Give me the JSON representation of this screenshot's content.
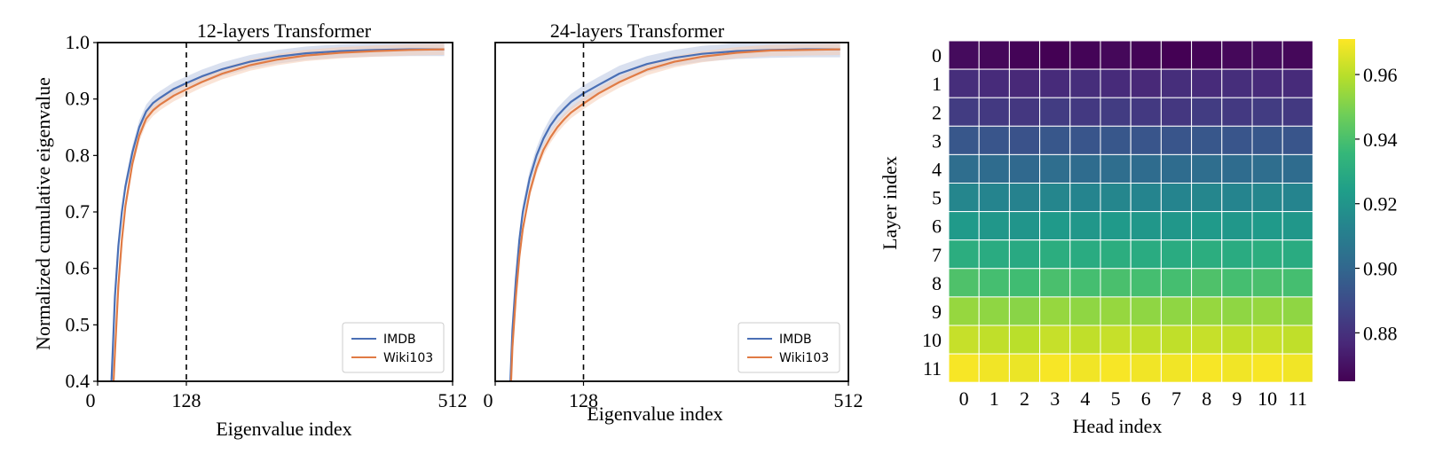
{
  "chart_data": [
    {
      "type": "line",
      "title": "12-layers Transformer",
      "xlabel": "Eigenvalue index",
      "ylabel": "Normalized cumulative eigenvalue",
      "xlim": [
        0,
        512
      ],
      "ylim": [
        0.4,
        1.0
      ],
      "xticks": [
        0,
        128,
        512
      ],
      "xtick_labels": [
        "0",
        "128",
        "512"
      ],
      "yticks": [
        0.4,
        0.5,
        0.6,
        0.7,
        0.8,
        0.9,
        1.0
      ],
      "ytick_labels": [
        "0.4",
        "0.5",
        "0.6",
        "0.7",
        "0.8",
        "0.9",
        "1.0"
      ],
      "vline": 128,
      "legend_position": "bottom-right",
      "series": [
        {
          "name": "IMDB",
          "color": "#4a6fb5",
          "band_color": "#b9c6e2",
          "x": [
            20,
            22,
            25,
            30,
            35,
            40,
            50,
            60,
            70,
            80,
            90,
            100,
            110,
            128,
            150,
            180,
            220,
            260,
            300,
            350,
            400,
            450,
            500
          ],
          "y": [
            0.4,
            0.46,
            0.55,
            0.64,
            0.7,
            0.745,
            0.805,
            0.85,
            0.878,
            0.893,
            0.902,
            0.91,
            0.918,
            0.928,
            0.94,
            0.953,
            0.966,
            0.975,
            0.981,
            0.985,
            0.987,
            0.988,
            0.988
          ],
          "band": 0.012
        },
        {
          "name": "Wiki103",
          "color": "#e07b45",
          "band_color": "#f6cdb6",
          "x": [
            23,
            25,
            30,
            35,
            40,
            50,
            60,
            70,
            80,
            90,
            100,
            110,
            128,
            150,
            180,
            220,
            260,
            300,
            350,
            400,
            450,
            500
          ],
          "y": [
            0.4,
            0.45,
            0.57,
            0.65,
            0.71,
            0.785,
            0.835,
            0.865,
            0.88,
            0.89,
            0.898,
            0.906,
            0.917,
            0.93,
            0.945,
            0.96,
            0.97,
            0.977,
            0.982,
            0.985,
            0.987,
            0.988
          ],
          "band": 0.01
        }
      ]
    },
    {
      "type": "line",
      "title": "24-layers Transformer",
      "xlabel": "Eigenvalue index",
      "ylabel": "",
      "xlim": [
        0,
        512
      ],
      "ylim": [
        0.4,
        1.0
      ],
      "xticks": [
        0,
        128,
        512
      ],
      "xtick_labels": [
        "0",
        "128",
        "512"
      ],
      "yticks": [],
      "ytick_labels": [],
      "vline": 128,
      "legend_position": "bottom-right",
      "series": [
        {
          "name": "IMDB",
          "color": "#4a6fb5",
          "band_color": "#b9c6e2",
          "x": [
            22,
            25,
            30,
            35,
            40,
            50,
            60,
            70,
            80,
            90,
            100,
            110,
            128,
            150,
            180,
            220,
            260,
            300,
            350,
            400,
            450,
            500
          ],
          "y": [
            0.4,
            0.49,
            0.58,
            0.65,
            0.7,
            0.76,
            0.8,
            0.83,
            0.853,
            0.87,
            0.883,
            0.895,
            0.91,
            0.925,
            0.945,
            0.962,
            0.973,
            0.98,
            0.985,
            0.987,
            0.988,
            0.988
          ],
          "band": 0.014
        },
        {
          "name": "Wiki103",
          "color": "#e07b45",
          "band_color": "#f6cdb6",
          "x": [
            23,
            25,
            30,
            35,
            40,
            50,
            60,
            70,
            80,
            90,
            100,
            110,
            128,
            150,
            180,
            220,
            260,
            300,
            350,
            400,
            450,
            500
          ],
          "y": [
            0.4,
            0.46,
            0.55,
            0.62,
            0.67,
            0.735,
            0.778,
            0.81,
            0.832,
            0.85,
            0.864,
            0.876,
            0.892,
            0.91,
            0.93,
            0.952,
            0.966,
            0.975,
            0.982,
            0.986,
            0.987,
            0.988
          ],
          "band": 0.01
        }
      ]
    },
    {
      "type": "heatmap",
      "title": "",
      "xlabel": "Head index",
      "ylabel": "Layer index",
      "x_tick_labels": [
        "0",
        "1",
        "2",
        "3",
        "4",
        "5",
        "6",
        "7",
        "8",
        "9",
        "10",
        "11"
      ],
      "y_tick_labels": [
        "0",
        "1",
        "2",
        "3",
        "4",
        "5",
        "6",
        "7",
        "8",
        "9",
        "10",
        "11"
      ],
      "colormap": "viridis",
      "vmin": 0.865,
      "vmax": 0.971,
      "colorbar_ticks": [
        0.88,
        0.9,
        0.92,
        0.94,
        0.96
      ],
      "colorbar_tick_labels": [
        "0.88",
        "0.90",
        "0.92",
        "0.94",
        "0.96"
      ],
      "row_values": [
        0.8665,
        0.8785,
        0.8835,
        0.8935,
        0.9025,
        0.9135,
        0.9215,
        0.9305,
        0.9395,
        0.9535,
        0.9615,
        0.9695
      ],
      "values": [
        [
          0.868,
          0.867,
          0.866,
          0.865,
          0.866,
          0.867,
          0.866,
          0.865,
          0.866,
          0.867,
          0.868,
          0.867
        ],
        [
          0.879,
          0.878,
          0.877,
          0.878,
          0.879,
          0.878,
          0.877,
          0.879,
          0.878,
          0.879,
          0.878,
          0.878
        ],
        [
          0.884,
          0.883,
          0.882,
          0.884,
          0.883,
          0.884,
          0.883,
          0.882,
          0.884,
          0.883,
          0.884,
          0.883
        ],
        [
          0.894,
          0.893,
          0.892,
          0.894,
          0.893,
          0.894,
          0.893,
          0.893,
          0.894,
          0.893,
          0.894,
          0.893
        ],
        [
          0.903,
          0.902,
          0.901,
          0.903,
          0.902,
          0.903,
          0.902,
          0.902,
          0.903,
          0.902,
          0.903,
          0.902
        ],
        [
          0.914,
          0.913,
          0.912,
          0.914,
          0.913,
          0.914,
          0.913,
          0.913,
          0.914,
          0.913,
          0.914,
          0.913
        ],
        [
          0.922,
          0.921,
          0.92,
          0.922,
          0.921,
          0.922,
          0.921,
          0.921,
          0.922,
          0.921,
          0.922,
          0.921
        ],
        [
          0.931,
          0.93,
          0.929,
          0.931,
          0.93,
          0.931,
          0.93,
          0.93,
          0.931,
          0.93,
          0.931,
          0.93
        ],
        [
          0.941,
          0.939,
          0.938,
          0.94,
          0.939,
          0.94,
          0.939,
          0.939,
          0.941,
          0.939,
          0.94,
          0.939
        ],
        [
          0.954,
          0.953,
          0.952,
          0.954,
          0.953,
          0.954,
          0.953,
          0.953,
          0.954,
          0.953,
          0.954,
          0.953
        ],
        [
          0.962,
          0.961,
          0.96,
          0.962,
          0.961,
          0.962,
          0.961,
          0.961,
          0.962,
          0.961,
          0.962,
          0.961
        ],
        [
          0.97,
          0.969,
          0.968,
          0.97,
          0.969,
          0.97,
          0.969,
          0.969,
          0.97,
          0.969,
          0.97,
          0.969
        ]
      ]
    }
  ]
}
